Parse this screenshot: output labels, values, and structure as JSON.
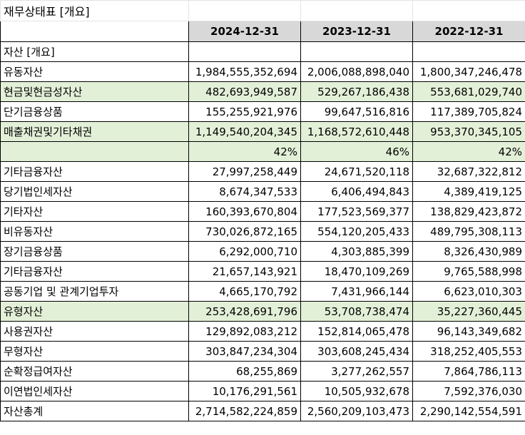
{
  "title": "재무상태표 [개요]",
  "columns": [
    "2024-12-31",
    "2023-12-31",
    "2022-12-31"
  ],
  "rows": [
    {
      "label": "자산 [개요]",
      "values": [
        "",
        "",
        ""
      ]
    },
    {
      "label": "유동자산",
      "values": [
        "1,984,555,352,694",
        "2,006,088,898,040",
        "1,800,347,246,478"
      ]
    },
    {
      "label": "현금및현금성자산",
      "values": [
        "482,693,949,587",
        "529,267,186,438",
        "553,681,029,740"
      ]
    },
    {
      "label": "단기금융상품",
      "values": [
        "155,255,921,976",
        "99,647,516,816",
        "117,389,705,824"
      ]
    },
    {
      "label": "매출채권및기타채권",
      "values": [
        "1,149,540,204,345",
        "1,168,572,610,448",
        "953,370,345,105"
      ]
    },
    {
      "label": "",
      "values": [
        "42%",
        "46%",
        "42%"
      ]
    },
    {
      "label": "기타금융자산",
      "values": [
        "27,997,258,449",
        "24,671,520,118",
        "32,687,322,812"
      ]
    },
    {
      "label": "당기법인세자산",
      "values": [
        "8,674,347,533",
        "6,406,494,843",
        "4,389,419,125"
      ]
    },
    {
      "label": "기타자산",
      "values": [
        "160,393,670,804",
        "177,523,569,377",
        "138,829,423,872"
      ]
    },
    {
      "label": "비유동자산",
      "values": [
        "730,026,872,165",
        "554,120,205,433",
        "489,795,308,113"
      ]
    },
    {
      "label": "장기금융상품",
      "values": [
        "6,292,000,710",
        "4,303,885,399",
        "8,326,430,989"
      ]
    },
    {
      "label": "기타금융자산",
      "values": [
        "21,657,143,921",
        "18,470,109,269",
        "9,765,588,998"
      ]
    },
    {
      "label": "공동기업 및 관계기업투자",
      "values": [
        "4,665,170,792",
        "7,431,966,144",
        "6,623,010,303"
      ]
    },
    {
      "label": "유형자산",
      "values": [
        "253,428,691,796",
        "53,708,738,474",
        "35,227,360,445"
      ]
    },
    {
      "label": "사용권자산",
      "values": [
        "129,892,083,212",
        "152,814,065,478",
        "96,143,349,682"
      ]
    },
    {
      "label": "무형자산",
      "values": [
        "303,847,234,304",
        "303,608,245,434",
        "318,252,405,553"
      ]
    },
    {
      "label": "순확정급여자산",
      "values": [
        "68,255,869",
        "3,277,262,557",
        "7,864,786,113"
      ]
    },
    {
      "label": "이연법인세자산",
      "values": [
        "10,176,291,561",
        "10,505,932,678",
        "7,592,376,030"
      ]
    },
    {
      "label": "자산총계",
      "values": [
        "2,714,582,224,859",
        "2,560,209,103,473",
        "2,290,142,554,591"
      ]
    }
  ],
  "highlight_color": "#e3f0d8",
  "header_fill": "#d8d8d8"
}
